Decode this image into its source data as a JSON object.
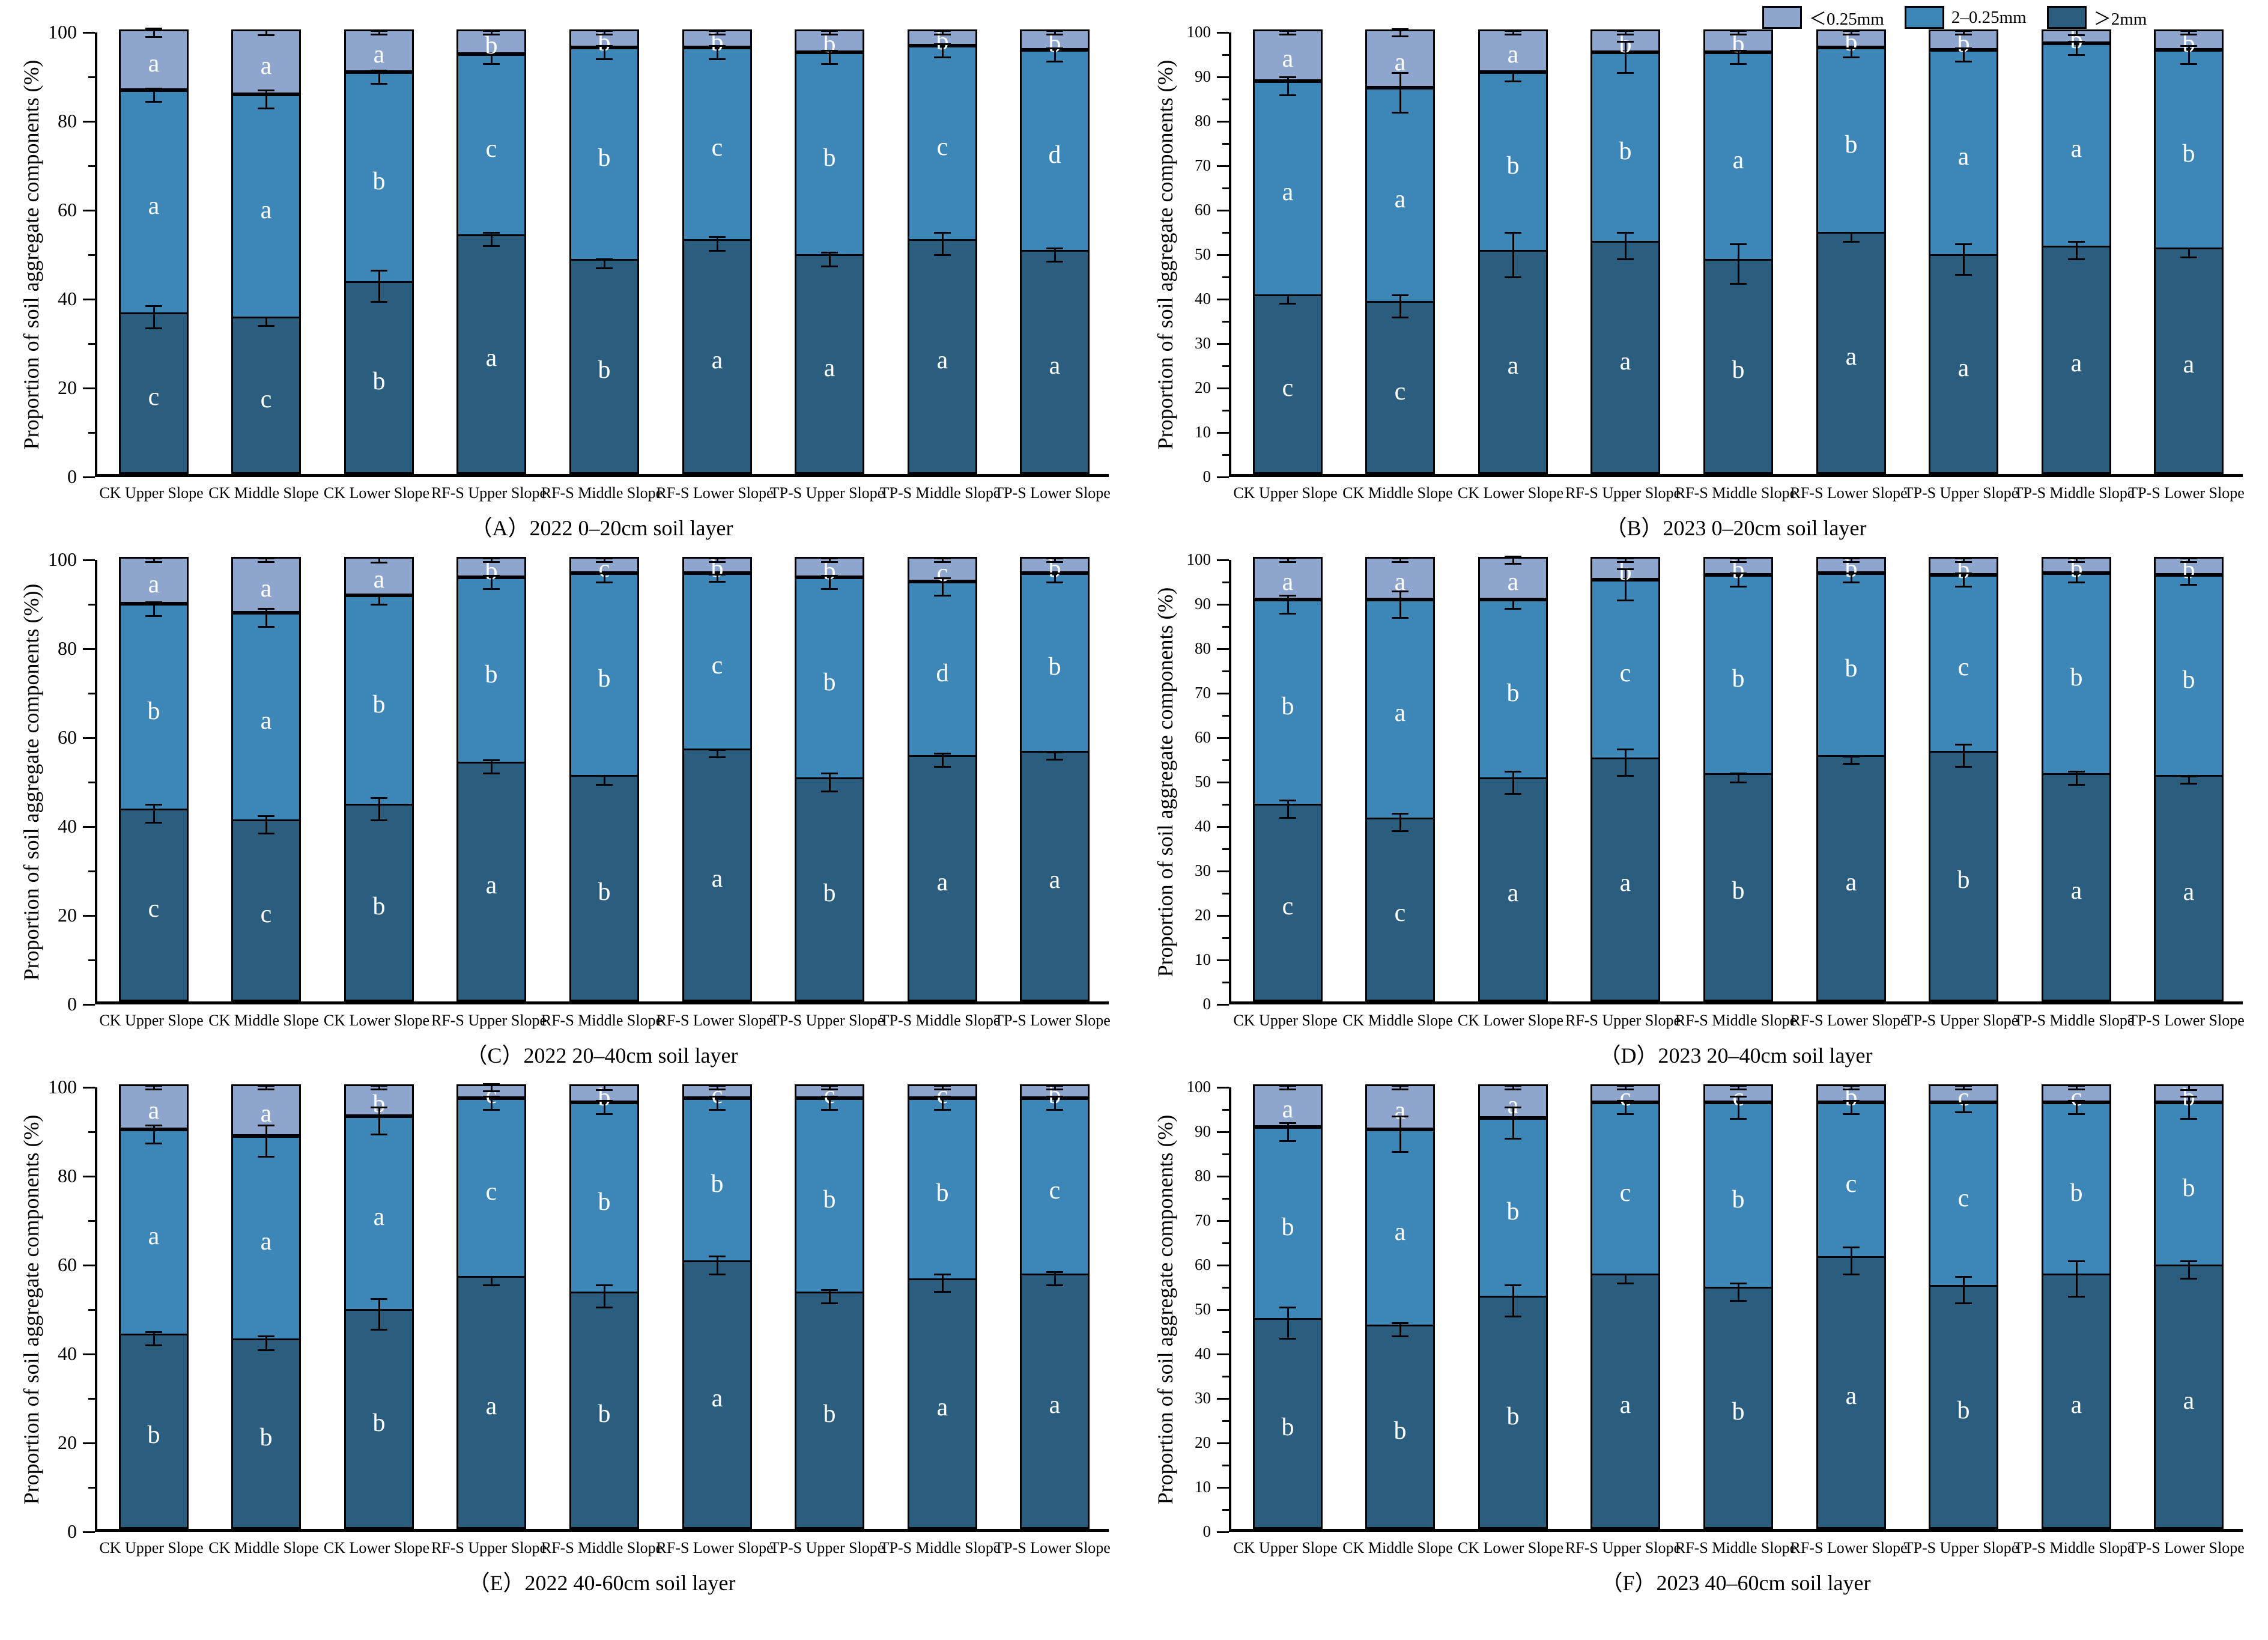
{
  "legend": {
    "items": [
      {
        "label": "＜0.25mm",
        "color": "#8ea6ce"
      },
      {
        "label": "2–0.25mm",
        "color": "#3d87b8"
      },
      {
        "label": "＞2mm",
        "color": "#2b5e7e"
      }
    ]
  },
  "colors": {
    "dark": "#2b5e7e",
    "mid": "#3d87b8",
    "light": "#8ea6ce",
    "axis": "#000000",
    "letter": "#ffffff"
  },
  "chart_data": [
    {
      "id": "A",
      "type": "bar",
      "stacked": true,
      "title": "（A）2022 0–20cm soil layer",
      "ylabel": "Proportion of soil aggregate components (%)",
      "ylim": [
        0,
        100
      ],
      "ytick_step": 20,
      "grid": false,
      "legend_position": "top-right-shared",
      "categories": [
        "CK Upper Slope",
        "CK Middle Slope",
        "CK Lower Slope",
        "RF-S Upper Slope",
        "RF-S Middle Slope",
        "RF-S Lower Slope",
        "TP-S Upper Slope",
        "TP-S Middle Slope",
        "TP-S Lower Slope"
      ],
      "series": [
        {
          "name": ">2mm",
          "values": [
            36,
            35,
            43,
            53.5,
            48,
            52.5,
            49,
            52.5,
            50
          ],
          "letters": [
            "c",
            "c",
            "b",
            "a",
            "b",
            "a",
            "a",
            "a",
            "a"
          ],
          "errors": [
            2.5,
            1,
            3.5,
            1.5,
            1,
            1.5,
            1.5,
            2.5,
            1.5
          ]
        },
        {
          "name": "2-0.25mm",
          "values": [
            50,
            50,
            47,
            40.5,
            47.5,
            43,
            45.5,
            43.5,
            45
          ],
          "letters": [
            "a",
            "a",
            "b",
            "c",
            "b",
            "c",
            "b",
            "c",
            "d"
          ],
          "errors": [
            1.5,
            2,
            1.5,
            1,
            1.5,
            1.5,
            1.5,
            1.5,
            1.5
          ]
        },
        {
          "name": "<0.25mm",
          "values": [
            14,
            15,
            10,
            6,
            4.5,
            4.5,
            5.5,
            4,
            5
          ],
          "letters": [
            "a",
            "a",
            "a",
            "b",
            "b",
            "b",
            "b",
            "b",
            "b"
          ],
          "errors": [
            1,
            0.5,
            0.4,
            0.4,
            0.4,
            0.4,
            0.4,
            0.4,
            0.4
          ]
        }
      ]
    },
    {
      "id": "B",
      "type": "bar",
      "stacked": true,
      "title": "（B）2023 0–20cm soil layer",
      "ylabel": "Proportion of soil aggregate components (%)",
      "ylim": [
        0,
        100
      ],
      "ytick_step": 10,
      "grid": false,
      "categories": [
        "CK Upper Slope",
        "CK Middle Slope",
        "CK Lower Slope",
        "RF-S Upper Slope",
        "RF-S Middle Slope",
        "RF-S Lower Slope",
        "TP-S Upper Slope",
        "TP-S Middle Slope",
        "TP-S Lower Slope"
      ],
      "series": [
        {
          "name": ">2mm",
          "values": [
            40,
            38.5,
            50,
            52,
            48,
            54,
            49,
            51,
            50.5
          ],
          "letters": [
            "c",
            "c",
            "a",
            "a",
            "b",
            "a",
            "a",
            "a",
            "a"
          ],
          "errors": [
            1,
            2.5,
            5,
            3,
            4.5,
            1,
            3.5,
            2,
            1
          ]
        },
        {
          "name": "2-0.25mm",
          "values": [
            48,
            48,
            40,
            42.5,
            46.5,
            41.5,
            46,
            45.5,
            44.5
          ],
          "letters": [
            "a",
            "a",
            "b",
            "b",
            "a",
            "b",
            "a",
            "a",
            "b"
          ],
          "errors": [
            2,
            4.5,
            1,
            3.5,
            1.5,
            1,
            1.5,
            1.5,
            2
          ]
        },
        {
          "name": "<0.25mm",
          "values": [
            12,
            13.5,
            10,
            5.5,
            5.5,
            4.5,
            5,
            3.5,
            5
          ],
          "letters": [
            "a",
            "a",
            "a",
            "b",
            "b",
            "b",
            "b",
            "b",
            "b"
          ],
          "errors": [
            0.4,
            0.8,
            0.4,
            0.4,
            0.4,
            0.4,
            0.4,
            0.5,
            0.4
          ]
        }
      ]
    },
    {
      "id": "C",
      "type": "bar",
      "stacked": true,
      "title": "（C）2022 20–40cm soil layer",
      "ylabel": "Proportion of soil aggregate components (%))",
      "ylim": [
        0,
        100
      ],
      "ytick_step": 20,
      "grid": false,
      "categories": [
        "CK Upper Slope",
        "CK Middle Slope",
        "CK Lower Slope",
        "RF-S Upper Slope",
        "RF-S Middle Slope",
        "RF-S Lower Slope",
        "TP-S Upper Slope",
        "TP-S Middle Slope",
        "TP-S Lower Slope"
      ],
      "series": [
        {
          "name": ">2mm",
          "values": [
            43,
            40.5,
            44,
            53.5,
            50.5,
            56.5,
            50,
            55,
            56
          ],
          "letters": [
            "c",
            "c",
            "b",
            "a",
            "b",
            "a",
            "b",
            "a",
            "a"
          ],
          "errors": [
            2,
            2,
            2.5,
            1.5,
            1,
            0.8,
            2,
            1.5,
            0.8
          ]
        },
        {
          "name": "2-0.25mm",
          "values": [
            46,
            46.5,
            47,
            41.5,
            45.5,
            39.5,
            45,
            39,
            40
          ],
          "letters": [
            "b",
            "a",
            "b",
            "b",
            "b",
            "c",
            "b",
            "d",
            "b"
          ],
          "errors": [
            1.5,
            2,
            1,
            1.5,
            1,
            0.8,
            1.5,
            2,
            1
          ]
        },
        {
          "name": "<0.25mm",
          "values": [
            11,
            13,
            9,
            5,
            4,
            4,
            5,
            6,
            4
          ],
          "letters": [
            "a",
            "a",
            "a",
            "b",
            "c",
            "b",
            "b",
            "c",
            "b"
          ],
          "errors": [
            0.4,
            0.4,
            0.6,
            0.4,
            0.4,
            0.4,
            0.4,
            0.4,
            0.4
          ]
        }
      ]
    },
    {
      "id": "D",
      "type": "bar",
      "stacked": true,
      "title": "（D）2023 20–40cm soil layer",
      "ylabel": "Proportion of soil aggregate components (%)",
      "ylim": [
        0,
        100
      ],
      "ytick_step": 10,
      "grid": false,
      "categories": [
        "CK Upper Slope",
        "CK Middle Slope",
        "CK Lower Slope",
        "RF-S Upper Slope",
        "RF-S Middle Slope",
        "RF-S Lower Slope",
        "TP-S Upper Slope",
        "TP-S Middle Slope",
        "TP-S Lower Slope"
      ],
      "series": [
        {
          "name": ">2mm",
          "values": [
            44,
            41,
            50,
            54.5,
            51,
            55,
            56,
            51,
            50.5
          ],
          "letters": [
            "c",
            "c",
            "a",
            "a",
            "b",
            "a",
            "b",
            "a",
            "a"
          ],
          "errors": [
            2,
            2,
            2.5,
            3,
            1,
            0.8,
            2.5,
            1.5,
            0.8
          ]
        },
        {
          "name": "2-0.25mm",
          "values": [
            46,
            49,
            40,
            40,
            44.5,
            41,
            39.5,
            45,
            45
          ],
          "letters": [
            "b",
            "a",
            "b",
            "c",
            "b",
            "b",
            "c",
            "b",
            "b"
          ],
          "errors": [
            2,
            3,
            1,
            3.5,
            1.5,
            1,
            1.5,
            1,
            1
          ]
        },
        {
          "name": "<0.25mm",
          "values": [
            10,
            10,
            10,
            5.5,
            4.5,
            4,
            4.5,
            4,
            4.5
          ],
          "letters": [
            "a",
            "a",
            "a",
            "b",
            "b",
            "b",
            "b",
            "b",
            "b"
          ],
          "errors": [
            0.4,
            0.4,
            0.8,
            0.4,
            0.4,
            0.4,
            0.4,
            0.4,
            0.4
          ]
        }
      ]
    },
    {
      "id": "E",
      "type": "bar",
      "stacked": true,
      "title": "（E）2022 40-60cm soil layer",
      "ylabel": "Proportion of soil aggregate components (%)",
      "ylim": [
        0,
        100
      ],
      "ytick_step": 20,
      "grid": false,
      "categories": [
        "CK Upper Slope",
        "CK Middle Slope",
        "CK Lower Slope",
        "RF-S Upper Slope",
        "RF-S Middle Slope",
        "RF-S Lower Slope",
        "TP-S Upper Slope",
        "TP-S Middle Slope",
        "TP-S Lower Slope"
      ],
      "series": [
        {
          "name": ">2mm",
          "values": [
            43.5,
            42.5,
            49,
            56.5,
            53,
            60,
            53,
            56,
            57
          ],
          "letters": [
            "b",
            "b",
            "b",
            "a",
            "b",
            "a",
            "b",
            "a",
            "a"
          ],
          "errors": [
            1.5,
            1.5,
            3.5,
            1,
            2.5,
            2,
            1.5,
            2,
            1.5
          ]
        },
        {
          "name": "2-0.25mm",
          "values": [
            46,
            45.5,
            43.5,
            40,
            42.5,
            36.5,
            43.5,
            40.5,
            39.5
          ],
          "letters": [
            "a",
            "a",
            "a",
            "c",
            "b",
            "b",
            "b",
            "b",
            "c"
          ],
          "errors": [
            2,
            3.5,
            3,
            1.5,
            1.5,
            1.5,
            1.5,
            1.5,
            1.5
          ]
        },
        {
          "name": "<0.25mm",
          "values": [
            10.5,
            12,
            7.5,
            3.5,
            4.5,
            3.5,
            3.5,
            3.5,
            3.5
          ],
          "letters": [
            "a",
            "a",
            "b",
            "c",
            "b",
            "c",
            "c",
            "c",
            "b"
          ],
          "errors": [
            0.4,
            0.4,
            0.4,
            0.8,
            0.5,
            0.4,
            0.4,
            0.4,
            0.4
          ]
        }
      ]
    },
    {
      "id": "F",
      "type": "bar",
      "stacked": true,
      "title": "（F）2023 40–60cm soil layer",
      "ylabel": "Proportion of soil aggregate components (%)",
      "ylim": [
        0,
        100
      ],
      "ytick_step": 10,
      "grid": false,
      "categories": [
        "CK Upper Slope",
        "CK Middle Slope",
        "CK Lower Slope",
        "RF-S Upper Slope",
        "RF-S Middle Slope",
        "RF-S Lower Slope",
        "TP-S Upper Slope",
        "TP-S Middle Slope",
        "TP-S Lower Slope"
      ],
      "series": [
        {
          "name": ">2mm",
          "values": [
            47,
            45.5,
            52,
            57,
            54,
            61,
            54.5,
            57,
            59
          ],
          "letters": [
            "b",
            "b",
            "b",
            "a",
            "b",
            "a",
            "b",
            "a",
            "a"
          ],
          "errors": [
            3.5,
            1.5,
            3.5,
            1,
            2,
            3,
            3,
            4,
            2
          ]
        },
        {
          "name": "2-0.25mm",
          "values": [
            43,
            44,
            40,
            38.5,
            41.5,
            34.5,
            41,
            38.5,
            36.5
          ],
          "letters": [
            "b",
            "a",
            "b",
            "c",
            "b",
            "c",
            "c",
            "b",
            "b"
          ],
          "errors": [
            2,
            4,
            3.5,
            1.5,
            2.5,
            1.5,
            1,
            1.5,
            2.5
          ]
        },
        {
          "name": "<0.25mm",
          "values": [
            10,
            10.5,
            8,
            4.5,
            4.5,
            4.5,
            4.5,
            4.5,
            4.5
          ],
          "letters": [
            "a",
            "a",
            "a",
            "c",
            "c",
            "b",
            "c",
            "c",
            "b"
          ],
          "errors": [
            0.4,
            0.4,
            0.4,
            0.4,
            0.4,
            0.4,
            0.4,
            0.4,
            0.5
          ]
        }
      ]
    }
  ]
}
